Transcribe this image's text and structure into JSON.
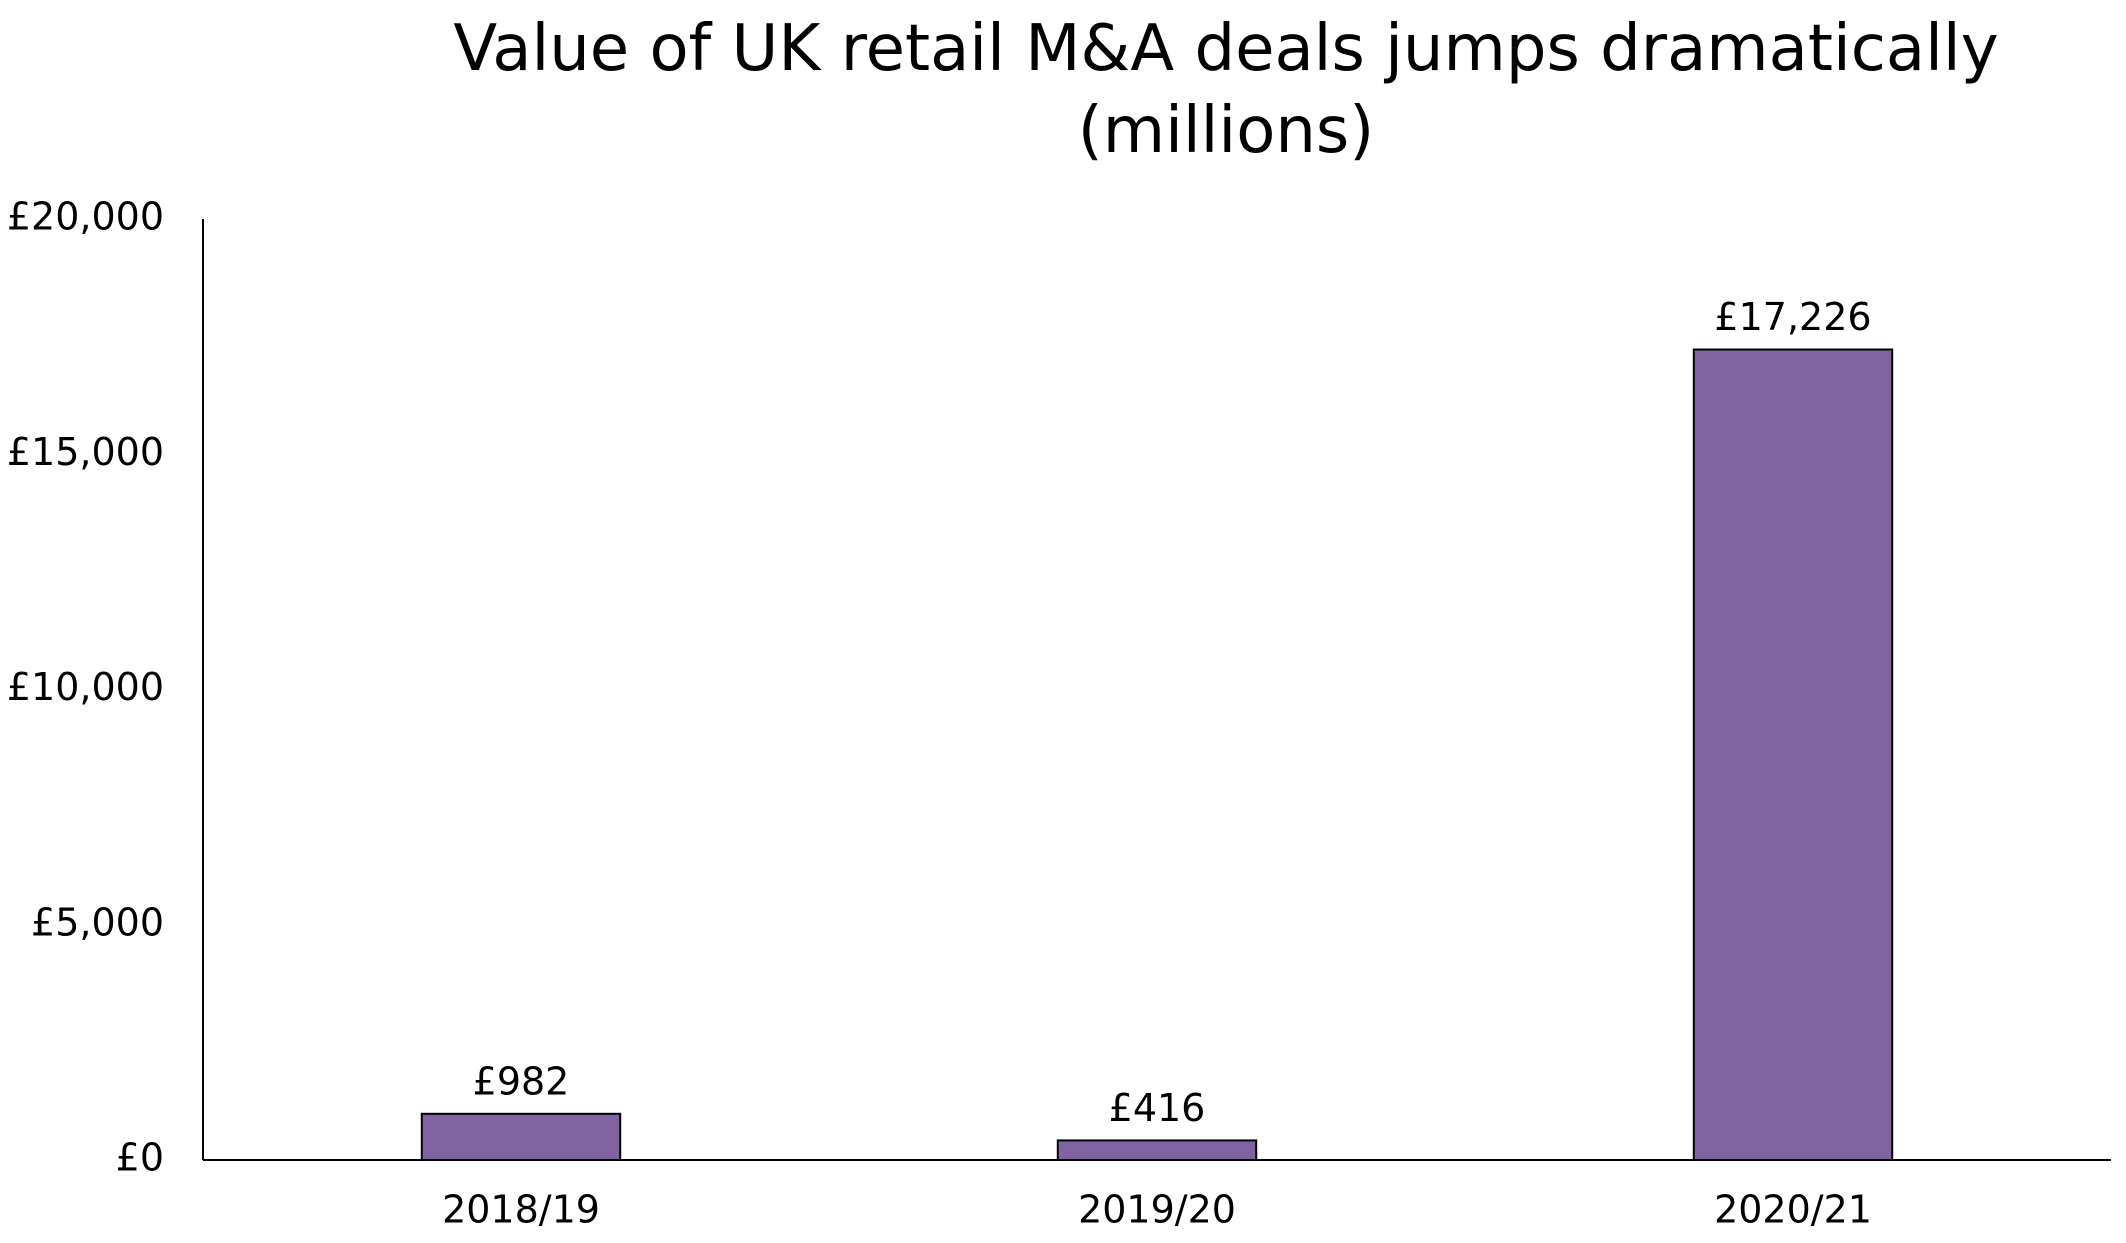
{
  "chart_data": {
    "type": "bar",
    "title": "Value of UK retail M&A deals jumps dramatically (millions)",
    "categories": [
      "2018/19",
      "2019/20",
      "2020/21"
    ],
    "values": [
      982,
      416,
      17226
    ],
    "value_labels": [
      "£982",
      "£416",
      "£17,226"
    ],
    "color": "#8064a2",
    "ylim": [
      0,
      20000
    ],
    "yticks": [
      {
        "value": 0,
        "label": "£0"
      },
      {
        "value": 5000,
        "label": "£5,000"
      },
      {
        "value": 10000,
        "label": "£10,000"
      },
      {
        "value": 15000,
        "label": "£15,000"
      },
      {
        "value": 20000,
        "label": "£20,000"
      }
    ],
    "grid": false
  }
}
